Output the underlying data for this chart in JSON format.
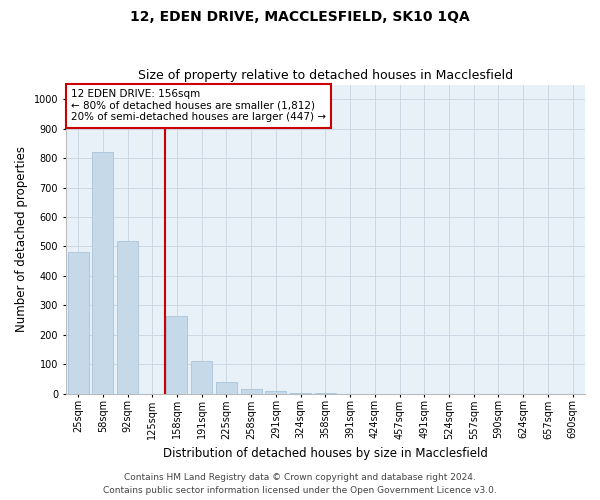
{
  "title_line1": "12, EDEN DRIVE, MACCLESFIELD, SK10 1QA",
  "title_line2": "Size of property relative to detached houses in Macclesfield",
  "xlabel": "Distribution of detached houses by size in Macclesfield",
  "ylabel": "Number of detached properties",
  "categories": [
    "25sqm",
    "58sqm",
    "92sqm",
    "125sqm",
    "158sqm",
    "191sqm",
    "225sqm",
    "258sqm",
    "291sqm",
    "324sqm",
    "358sqm",
    "391sqm",
    "424sqm",
    "457sqm",
    "491sqm",
    "524sqm",
    "557sqm",
    "590sqm",
    "624sqm",
    "657sqm",
    "690sqm"
  ],
  "values": [
    480,
    820,
    520,
    0,
    265,
    110,
    40,
    15,
    8,
    3,
    1,
    0,
    0,
    0,
    0,
    0,
    0,
    0,
    0,
    0,
    0
  ],
  "bar_color": "#c6d9e8",
  "bar_edge_color": "#9fbdd4",
  "red_line_x": 3.5,
  "annotation_line1": "12 EDEN DRIVE: 156sqm",
  "annotation_line2": "← 80% of detached houses are smaller (1,812)",
  "annotation_line3": "20% of semi-detached houses are larger (447) →",
  "annotation_box_facecolor": "#ffffff",
  "annotation_box_edgecolor": "#cc0000",
  "ylim": [
    0,
    1050
  ],
  "yticks": [
    0,
    100,
    200,
    300,
    400,
    500,
    600,
    700,
    800,
    900,
    1000
  ],
  "grid_color": "#ccd8e4",
  "background_color": "#e8f0f8",
  "footer_line1": "Contains HM Land Registry data © Crown copyright and database right 2024.",
  "footer_line2": "Contains public sector information licensed under the Open Government Licence v3.0.",
  "title_fontsize": 10,
  "subtitle_fontsize": 9,
  "xlabel_fontsize": 8.5,
  "ylabel_fontsize": 8.5,
  "tick_fontsize": 7,
  "annotation_fontsize": 7.5,
  "footer_fontsize": 6.5
}
